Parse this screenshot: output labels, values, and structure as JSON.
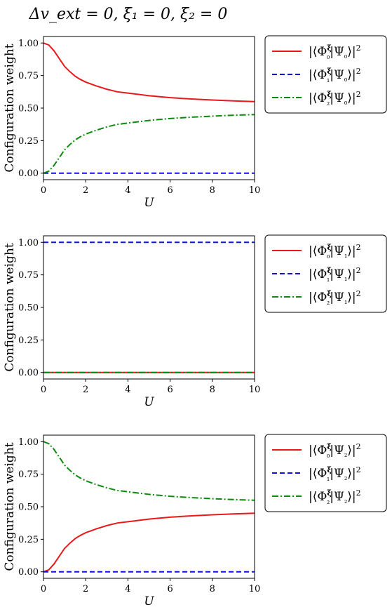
{
  "title": "Δv_ext = 0, ξ₁ = 0, ξ₂ = 0",
  "chart_data": [
    {
      "type": "line",
      "xlabel": "U",
      "ylabel": "Configuration weight",
      "xlim": [
        0,
        10
      ],
      "ylim": [
        -0.05,
        1.05
      ],
      "xticks": [
        "0",
        "2",
        "4",
        "6",
        "8",
        "10"
      ],
      "yticks": [
        "0.00",
        "0.25",
        "0.50",
        "0.75",
        "1.00"
      ],
      "legend_position": "outside-right-top",
      "x": [
        0,
        0.25,
        0.5,
        0.75,
        1,
        1.25,
        1.5,
        1.75,
        2,
        2.5,
        3,
        3.5,
        4,
        5,
        6,
        7,
        8,
        9,
        10
      ],
      "series": [
        {
          "name": "|⟨Φ₀^ξ|Ψ₀⟩|²",
          "color": "#e8191a",
          "dash": "solid",
          "values": [
            1.0,
            0.985,
            0.94,
            0.88,
            0.82,
            0.78,
            0.745,
            0.72,
            0.7,
            0.67,
            0.645,
            0.625,
            0.615,
            0.595,
            0.58,
            0.57,
            0.562,
            0.555,
            0.55
          ]
        },
        {
          "name": "|⟨Φ₁^ξ|Ψ₀⟩|²",
          "color": "#1010e0",
          "dash": "dashed",
          "values": [
            0,
            0,
            0,
            0,
            0,
            0,
            0,
            0,
            0,
            0,
            0,
            0,
            0,
            0,
            0,
            0,
            0,
            0,
            0
          ]
        },
        {
          "name": "|⟨Φ₂^ξ|Ψ₀⟩|²",
          "color": "#0a8a0a",
          "dash": "dashdot",
          "values": [
            0.0,
            0.015,
            0.06,
            0.12,
            0.18,
            0.22,
            0.255,
            0.28,
            0.3,
            0.33,
            0.355,
            0.375,
            0.385,
            0.405,
            0.42,
            0.43,
            0.438,
            0.445,
            0.45
          ]
        }
      ]
    },
    {
      "type": "line",
      "xlabel": "U",
      "ylabel": "Configuration weight",
      "xlim": [
        0,
        10
      ],
      "ylim": [
        -0.05,
        1.05
      ],
      "xticks": [
        "0",
        "2",
        "4",
        "6",
        "8",
        "10"
      ],
      "yticks": [
        "0.00",
        "0.25",
        "0.50",
        "0.75",
        "1.00"
      ],
      "legend_position": "outside-right-top",
      "x": [
        0,
        2,
        4,
        6,
        8,
        10
      ],
      "series": [
        {
          "name": "|⟨Φ₀^ξ|Ψ₁⟩|²",
          "color": "#e8191a",
          "dash": "solid",
          "values": [
            0,
            0,
            0,
            0,
            0,
            0
          ]
        },
        {
          "name": "|⟨Φ₁^ξ|Ψ₁⟩|²",
          "color": "#1010e0",
          "dash": "dashed",
          "values": [
            1,
            1,
            1,
            1,
            1,
            1
          ]
        },
        {
          "name": "|⟨Φ₂^ξ|Ψ₁⟩|²",
          "color": "#0a8a0a",
          "dash": "dashdot",
          "values": [
            0,
            0,
            0,
            0,
            0,
            0
          ]
        }
      ]
    },
    {
      "type": "line",
      "xlabel": "U",
      "ylabel": "Configuration weight",
      "xlim": [
        0,
        10
      ],
      "ylim": [
        -0.05,
        1.05
      ],
      "xticks": [
        "0",
        "2",
        "4",
        "6",
        "8",
        "10"
      ],
      "yticks": [
        "0.00",
        "0.25",
        "0.50",
        "0.75",
        "1.00"
      ],
      "legend_position": "outside-right-top",
      "x": [
        0,
        0.25,
        0.5,
        0.75,
        1,
        1.25,
        1.5,
        1.75,
        2,
        2.5,
        3,
        3.5,
        4,
        5,
        6,
        7,
        8,
        9,
        10
      ],
      "series": [
        {
          "name": "|⟨Φ₀^ξ|Ψ₂⟩|²",
          "color": "#e8191a",
          "dash": "solid",
          "values": [
            0.0,
            0.015,
            0.06,
            0.12,
            0.18,
            0.22,
            0.255,
            0.28,
            0.3,
            0.33,
            0.355,
            0.375,
            0.385,
            0.405,
            0.42,
            0.43,
            0.438,
            0.445,
            0.45
          ]
        },
        {
          "name": "|⟨Φ₁^ξ|Ψ₂⟩|²",
          "color": "#1010e0",
          "dash": "dashed",
          "values": [
            0,
            0,
            0,
            0,
            0,
            0,
            0,
            0,
            0,
            0,
            0,
            0,
            0,
            0,
            0,
            0,
            0,
            0,
            0
          ]
        },
        {
          "name": "|⟨Φ₂^ξ|Ψ₂⟩|²",
          "color": "#0a8a0a",
          "dash": "dashdot",
          "values": [
            1.0,
            0.985,
            0.94,
            0.88,
            0.82,
            0.78,
            0.745,
            0.72,
            0.7,
            0.67,
            0.645,
            0.625,
            0.615,
            0.595,
            0.58,
            0.57,
            0.562,
            0.555,
            0.55
          ]
        }
      ]
    }
  ]
}
